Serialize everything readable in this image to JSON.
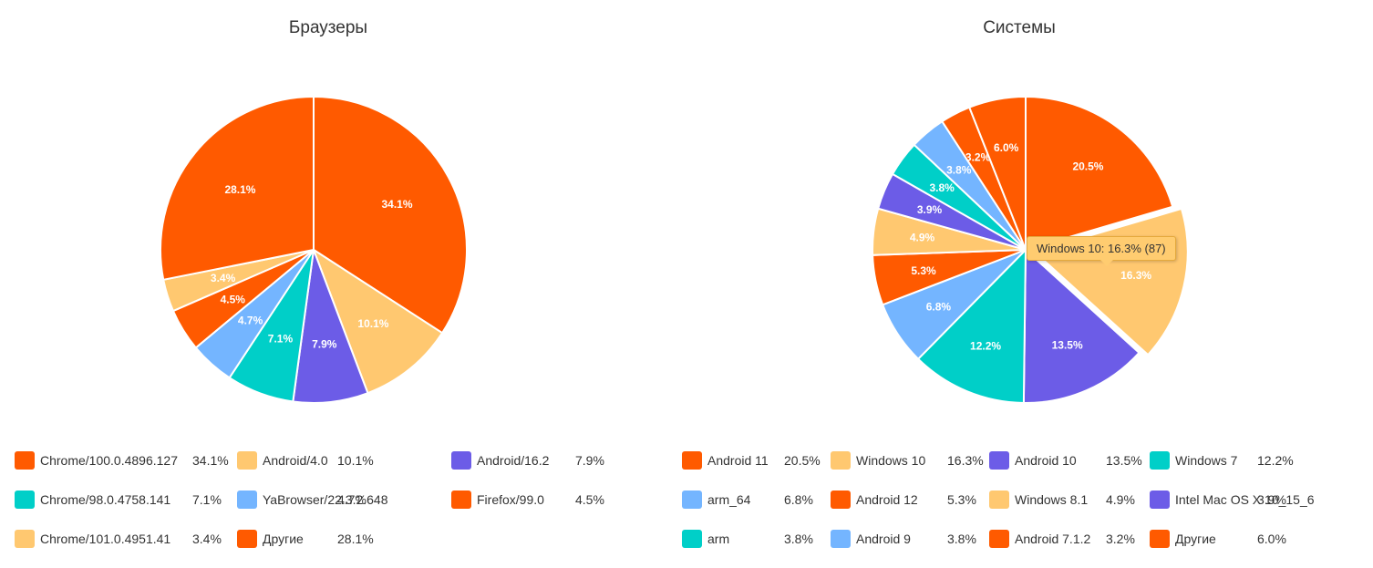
{
  "chart_data": [
    {
      "type": "pie",
      "title": "Браузеры",
      "slices": [
        {
          "name": "Chrome/100.0.4896.127",
          "value": 34.1,
          "label": "34.1%",
          "legend_pct": "34.1%",
          "color": "#ff5a00"
        },
        {
          "name": "Android/4.0",
          "value": 10.1,
          "label": "10.1%",
          "legend_pct": "10.1%",
          "color": "#ffc870"
        },
        {
          "name": "Android/16.2",
          "value": 7.9,
          "label": "7.9%",
          "legend_pct": "7.9%",
          "color": "#6c5ce7"
        },
        {
          "name": "Chrome/98.0.4758.141",
          "value": 7.1,
          "label": "7.1%",
          "legend_pct": "7.1%",
          "color": "#00cfc8"
        },
        {
          "name": "YaBrowser/22.3.2.648",
          "value": 4.7,
          "label": "4.7%",
          "legend_pct": "4.7%",
          "color": "#74b5ff"
        },
        {
          "name": "Firefox/99.0",
          "value": 4.5,
          "label": "4.5%",
          "legend_pct": "4.5%",
          "color": "#ff5a00"
        },
        {
          "name": "Chrome/101.0.4951.41",
          "value": 3.4,
          "label": "3.4%",
          "legend_pct": "3.4%",
          "color": "#ffc870"
        },
        {
          "name": "Другие",
          "value": 28.1,
          "label": "28.1%",
          "legend_pct": "28.1%",
          "color": "#ff5a00"
        }
      ]
    },
    {
      "type": "pie",
      "title": "Системы",
      "tooltip": "Windows 10: 16.3% (87)",
      "slices": [
        {
          "name": "Android 11",
          "value": 20.5,
          "label": "20.5%",
          "legend_pct": "20.5%",
          "color": "#ff5a00"
        },
        {
          "name": "Windows 10",
          "value": 16.3,
          "label": "16.3%",
          "legend_pct": "16.3%",
          "color": "#ffc870"
        },
        {
          "name": "Android 10",
          "value": 13.5,
          "label": "13.5%",
          "legend_pct": "13.5%",
          "color": "#6c5ce7"
        },
        {
          "name": "Windows 7",
          "value": 12.2,
          "label": "12.2%",
          "legend_pct": "12.2%",
          "color": "#00cfc8"
        },
        {
          "name": "arm_64",
          "value": 6.8,
          "label": "6.8%",
          "legend_pct": "6.8%",
          "color": "#74b5ff"
        },
        {
          "name": "Android 12",
          "value": 5.3,
          "label": "5.3%",
          "legend_pct": "5.3%",
          "color": "#ff5a00"
        },
        {
          "name": "Windows 8.1",
          "value": 4.9,
          "label": "4.9%",
          "legend_pct": "4.9%",
          "color": "#ffc870"
        },
        {
          "name": "Intel Mac OS X 10_15_6",
          "value": 3.9,
          "label": "3.9%",
          "legend_pct": "3.9%",
          "color": "#6c5ce7"
        },
        {
          "name": "arm",
          "value": 3.8,
          "label": "3.8%",
          "legend_pct": "3.8%",
          "color": "#00cfc8"
        },
        {
          "name": "Android 9",
          "value": 3.8,
          "label": "3.8%",
          "legend_pct": "3.8%",
          "color": "#74b5ff"
        },
        {
          "name": "Android 7.1.2",
          "value": 3.2,
          "label": "3.2%",
          "legend_pct": "3.2%",
          "color": "#ff5a00"
        },
        {
          "name": "Другие",
          "value": 6.0,
          "label": "6.0%",
          "legend_pct": "6.0%",
          "color": "#ff5a00"
        }
      ]
    }
  ]
}
